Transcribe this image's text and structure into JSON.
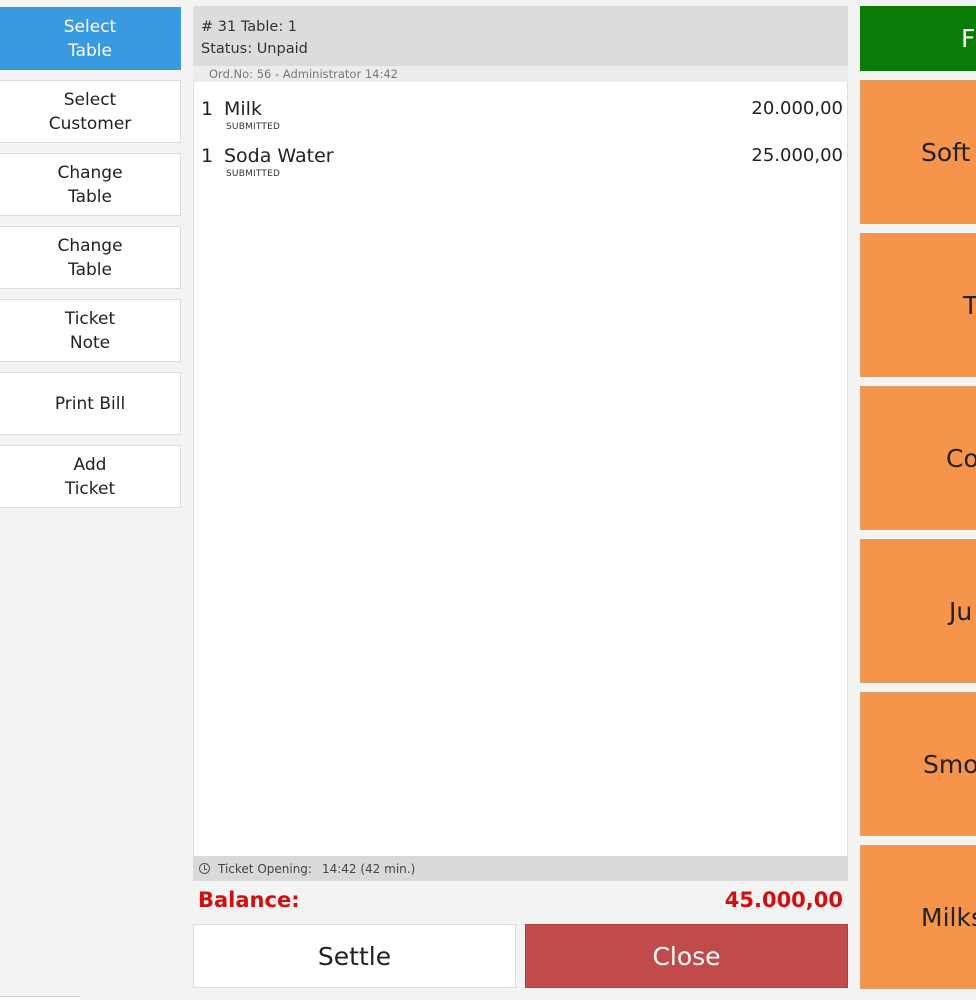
{
  "actions": [
    {
      "label": "Select\nTable",
      "primary": true
    },
    {
      "label": "Select\nCustomer"
    },
    {
      "label": "Change\nTable"
    },
    {
      "label": "Change\nTable"
    },
    {
      "label": "Ticket\nNote"
    },
    {
      "label": "Print Bill"
    },
    {
      "label": "Add\nTicket"
    }
  ],
  "ticket": {
    "header_line1": "# 31 Table: 1",
    "header_line2": "Status: Unpaid",
    "order_info": "Ord.No: 56 - Administrator 14:42",
    "items": [
      {
        "qty": "1",
        "name": "Milk",
        "status": "SUBMITTED",
        "price": "20.000,00"
      },
      {
        "qty": "1",
        "name": "Soda Water",
        "status": "SUBMITTED",
        "price": "25.000,00"
      }
    ],
    "opening_label": "Ticket Opening:",
    "opening_value": "14:42 (42 min.)",
    "balance_label": "Balance:",
    "balance_value": "45.000,00",
    "settle_label": "Settle",
    "close_label": "Close"
  },
  "categories": [
    {
      "label": "Fo",
      "color": "#087b08"
    },
    {
      "label": "Soft",
      "color": "#f5944a"
    },
    {
      "label": "T",
      "color": "#f5944a"
    },
    {
      "label": "Co",
      "color": "#f5944a"
    },
    {
      "label": "Ju",
      "color": "#f5944a"
    },
    {
      "label": "Smo",
      "color": "#f5944a"
    },
    {
      "label": "Milks",
      "color": "#f5944a"
    }
  ]
}
